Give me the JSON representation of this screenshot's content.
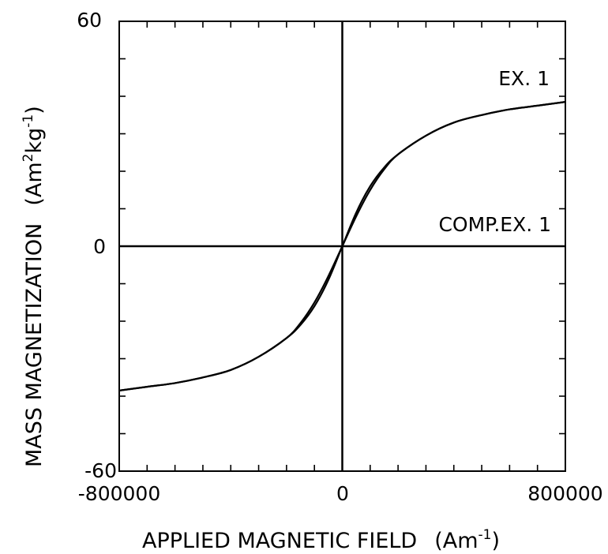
{
  "chart_data": {
    "type": "line",
    "xlabel": {
      "main": "APPLIED MAGNETIC FIELD",
      "unit_base": "(Am",
      "unit_exp": "-1",
      "unit_end": ")"
    },
    "ylabel": {
      "main": "MASS MAGNETIZATION",
      "unit_a": "(Am",
      "unit_exp1": "2",
      "unit_b": "kg",
      "unit_exp2": "-1",
      "unit_end": ")"
    },
    "xlim": [
      -800000,
      800000
    ],
    "ylim": [
      -60,
      60
    ],
    "x_tick_labels": [
      "-800000",
      "0",
      "800000"
    ],
    "y_tick_labels": [
      "60",
      "0",
      "-60"
    ],
    "grid": false,
    "annotations": [
      "EX. 1",
      "COMP.EX. 1"
    ],
    "series": [
      {
        "x": [
          -800000,
          -700000,
          -600000,
          -500000,
          -400000,
          -300000,
          -200000,
          -150000,
          -100000,
          -50000,
          0,
          50000,
          100000,
          150000,
          200000,
          300000,
          400000,
          500000,
          600000,
          700000,
          800000
        ],
        "y": [
          -38.5,
          -37.5,
          -36.5,
          -35,
          -33,
          -29.5,
          -24.5,
          -21,
          -16,
          -9,
          0,
          9,
          16,
          21,
          24.5,
          29.5,
          33,
          35,
          36.5,
          37.5,
          38.5
        ]
      },
      {
        "x": [
          -800000,
          -700000,
          -600000,
          -500000,
          -400000,
          -300000,
          -200000,
          -150000,
          -100000,
          -50000,
          0,
          50000,
          100000,
          150000,
          200000,
          300000,
          400000,
          500000,
          600000,
          700000,
          800000
        ],
        "y": [
          -38.5,
          -37.5,
          -36.5,
          -35,
          -33,
          -29.5,
          -24.5,
          -20.5,
          -15,
          -8,
          0,
          8,
          15,
          20.5,
          24.5,
          29.5,
          33,
          35,
          36.5,
          37.5,
          38.5
        ]
      }
    ]
  }
}
